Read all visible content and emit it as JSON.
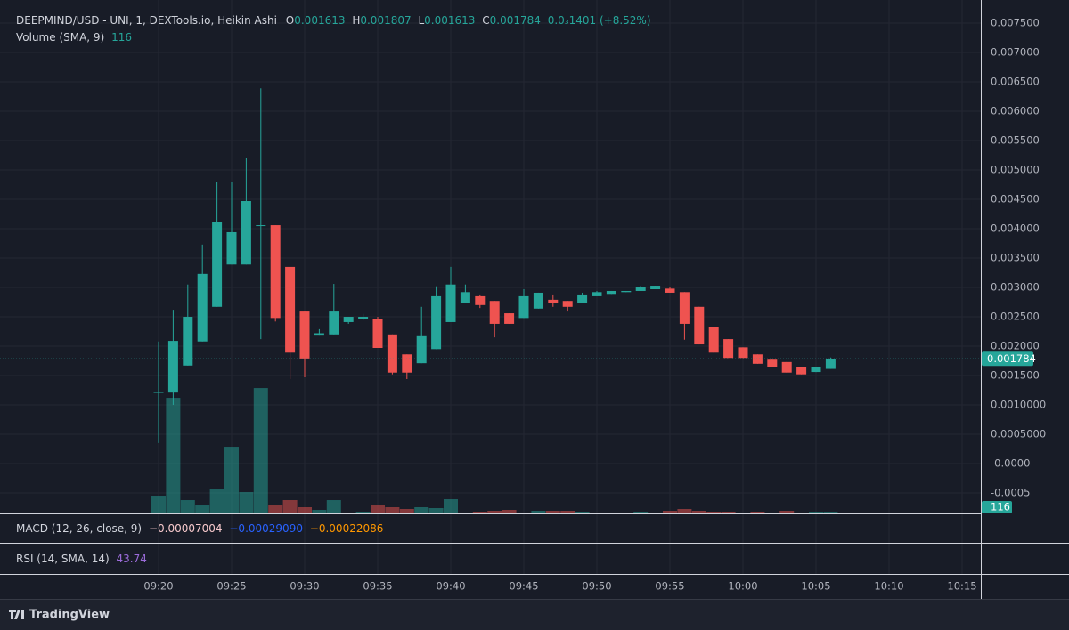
{
  "chart_data": {
    "type": "candlestick",
    "title": "DEEPMIND/USD - UNI, 1, DEXTools.io, Heikin Ashi",
    "ohlc_header": {
      "o_label": "O",
      "o": 0.001613,
      "h_label": "H",
      "h": 0.001807,
      "l_label": "L",
      "l": 0.001613,
      "c_label": "C",
      "c": 0.001784,
      "change": "0.0₃1401 (+8.52%)"
    },
    "volume_label": "Volume (SMA, 9)",
    "volume_last": 116,
    "macd": {
      "label": "MACD (12, 26, close, 9)",
      "values": [
        "−0.00007004",
        "−0.00029090",
        "−0.00022086"
      ]
    },
    "rsi": {
      "label": "RSI (14, SMA, 14)",
      "value": "43.74"
    },
    "last_price": 0.001784,
    "brand": "TradingView",
    "up_color": "#26a69a",
    "down_color": "#ef5350",
    "x": [
      "09:20",
      "09:21",
      "09:22",
      "09:23",
      "09:24",
      "09:25",
      "09:26",
      "09:27",
      "09:28",
      "09:29",
      "09:30",
      "09:31",
      "09:32",
      "09:33",
      "09:34",
      "09:35",
      "09:36",
      "09:37",
      "09:38",
      "09:39",
      "09:40",
      "09:41",
      "09:42",
      "09:43",
      "09:44",
      "09:45",
      "09:46",
      "09:47",
      "09:48",
      "09:49",
      "09:50",
      "09:51",
      "09:52",
      "09:53",
      "09:54",
      "09:55",
      "09:56",
      "09:57",
      "09:58",
      "09:59",
      "10:00",
      "10:01",
      "10:02",
      "10:03",
      "10:04",
      "10:05",
      "10:06"
    ],
    "open": [
      0.00121,
      0.00121,
      0.00167,
      0.00208,
      0.00267,
      0.00339,
      0.00339,
      0.00406,
      0.00406,
      0.00335,
      0.00259,
      0.00218,
      0.0022,
      0.00241,
      0.00246,
      0.00247,
      0.0022,
      0.00186,
      0.00171,
      0.00195,
      0.00241,
      0.00273,
      0.00285,
      0.00277,
      0.00256,
      0.00248,
      0.00264,
      0.00279,
      0.00277,
      0.00274,
      0.00285,
      0.00289,
      0.00292,
      0.00294,
      0.00297,
      0.00298,
      0.00292,
      0.00267,
      0.00233,
      0.00212,
      0.00198,
      0.00186,
      0.00177,
      0.00173,
      0.00165,
      0.00156,
      0.001613
    ],
    "high": [
      0.00208,
      0.00262,
      0.00305,
      0.00373,
      0.00479,
      0.00479,
      0.0052,
      0.00639,
      0.00406,
      0.00335,
      0.00259,
      0.00229,
      0.00306,
      0.0025,
      0.00255,
      0.0025,
      0.0022,
      0.00186,
      0.00267,
      0.00302,
      0.00335,
      0.00305,
      0.00288,
      0.00277,
      0.00256,
      0.00297,
      0.00291,
      0.00288,
      0.00277,
      0.00291,
      0.00294,
      0.00294,
      0.00294,
      0.00303,
      0.00303,
      0.003,
      0.00292,
      0.00267,
      0.00233,
      0.00212,
      0.00198,
      0.00186,
      0.00177,
      0.00173,
      0.00165,
      0.00164,
      0.001807
    ],
    "low": [
      0.00035,
      0.001,
      0.00167,
      0.00208,
      0.00267,
      0.00339,
      0.00339,
      0.00212,
      0.00242,
      0.00144,
      0.00147,
      0.00218,
      0.0022,
      0.00238,
      0.00244,
      0.00197,
      0.00152,
      0.00144,
      0.00171,
      0.00195,
      0.00241,
      0.00273,
      0.00265,
      0.00215,
      0.00238,
      0.00248,
      0.00264,
      0.00267,
      0.00259,
      0.00274,
      0.00285,
      0.00289,
      0.00292,
      0.00294,
      0.00297,
      0.00291,
      0.00211,
      0.00203,
      0.00189,
      0.0018,
      0.0018,
      0.0017,
      0.00164,
      0.00155,
      0.00152,
      0.00156,
      0.001613
    ],
    "close": [
      0.00122,
      0.00209,
      0.0025,
      0.00323,
      0.00411,
      0.00394,
      0.00447,
      0.00406,
      0.00248,
      0.00189,
      0.00179,
      0.00222,
      0.00259,
      0.0025,
      0.0025,
      0.00197,
      0.00155,
      0.00155,
      0.00217,
      0.00285,
      0.00305,
      0.00292,
      0.0027,
      0.00238,
      0.00238,
      0.00285,
      0.00291,
      0.00274,
      0.00267,
      0.00288,
      0.00292,
      0.00294,
      0.00294,
      0.003,
      0.00303,
      0.00291,
      0.00238,
      0.00203,
      0.00189,
      0.0018,
      0.0018,
      0.0017,
      0.00164,
      0.00155,
      0.00152,
      0.00164,
      0.001784
    ],
    "volume": [
      1176,
      7644,
      882,
      529,
      1588,
      4410,
      1411,
      8291,
      529,
      882,
      412,
      235,
      882,
      59,
      118,
      529,
      412,
      294,
      412,
      353,
      941,
      59,
      118,
      176,
      235,
      59,
      176,
      176,
      176,
      118,
      59,
      59,
      59,
      118,
      59,
      176,
      294,
      176,
      118,
      118,
      59,
      118,
      59,
      176,
      59,
      118,
      116
    ],
    "volume_lim": [
      0,
      10000
    ],
    "ylim": [
      -0.000848,
      0.007894
    ],
    "yticks": [
      {
        "value": 0.0075,
        "label": "0.007500"
      },
      {
        "value": 0.007,
        "label": "0.007000"
      },
      {
        "value": 0.0065,
        "label": "0.006500"
      },
      {
        "value": 0.006,
        "label": "0.006000"
      },
      {
        "value": 0.0055,
        "label": "0.005500"
      },
      {
        "value": 0.005,
        "label": "0.005000"
      },
      {
        "value": 0.0045,
        "label": "0.004500"
      },
      {
        "value": 0.004,
        "label": "0.004000"
      },
      {
        "value": 0.0035,
        "label": "0.003500"
      },
      {
        "value": 0.003,
        "label": "0.003000"
      },
      {
        "value": 0.0025,
        "label": "0.002500"
      },
      {
        "value": 0.002,
        "label": "0.002000"
      },
      {
        "value": 0.0015,
        "label": "0.001500"
      },
      {
        "value": 0.001,
        "label": "0.0010000"
      },
      {
        "value": 0.0005,
        "label": "0.0005000"
      },
      {
        "value": 0,
        "label": "-0.0000"
      },
      {
        "value": -0.0005,
        "label": "-0.0005"
      }
    ],
    "xticks": [
      "09:20",
      "09:25",
      "09:30",
      "09:35",
      "09:40",
      "09:45",
      "09:50",
      "09:55",
      "10:00",
      "10:05",
      "10:10",
      "10:15"
    ],
    "grid": true
  }
}
